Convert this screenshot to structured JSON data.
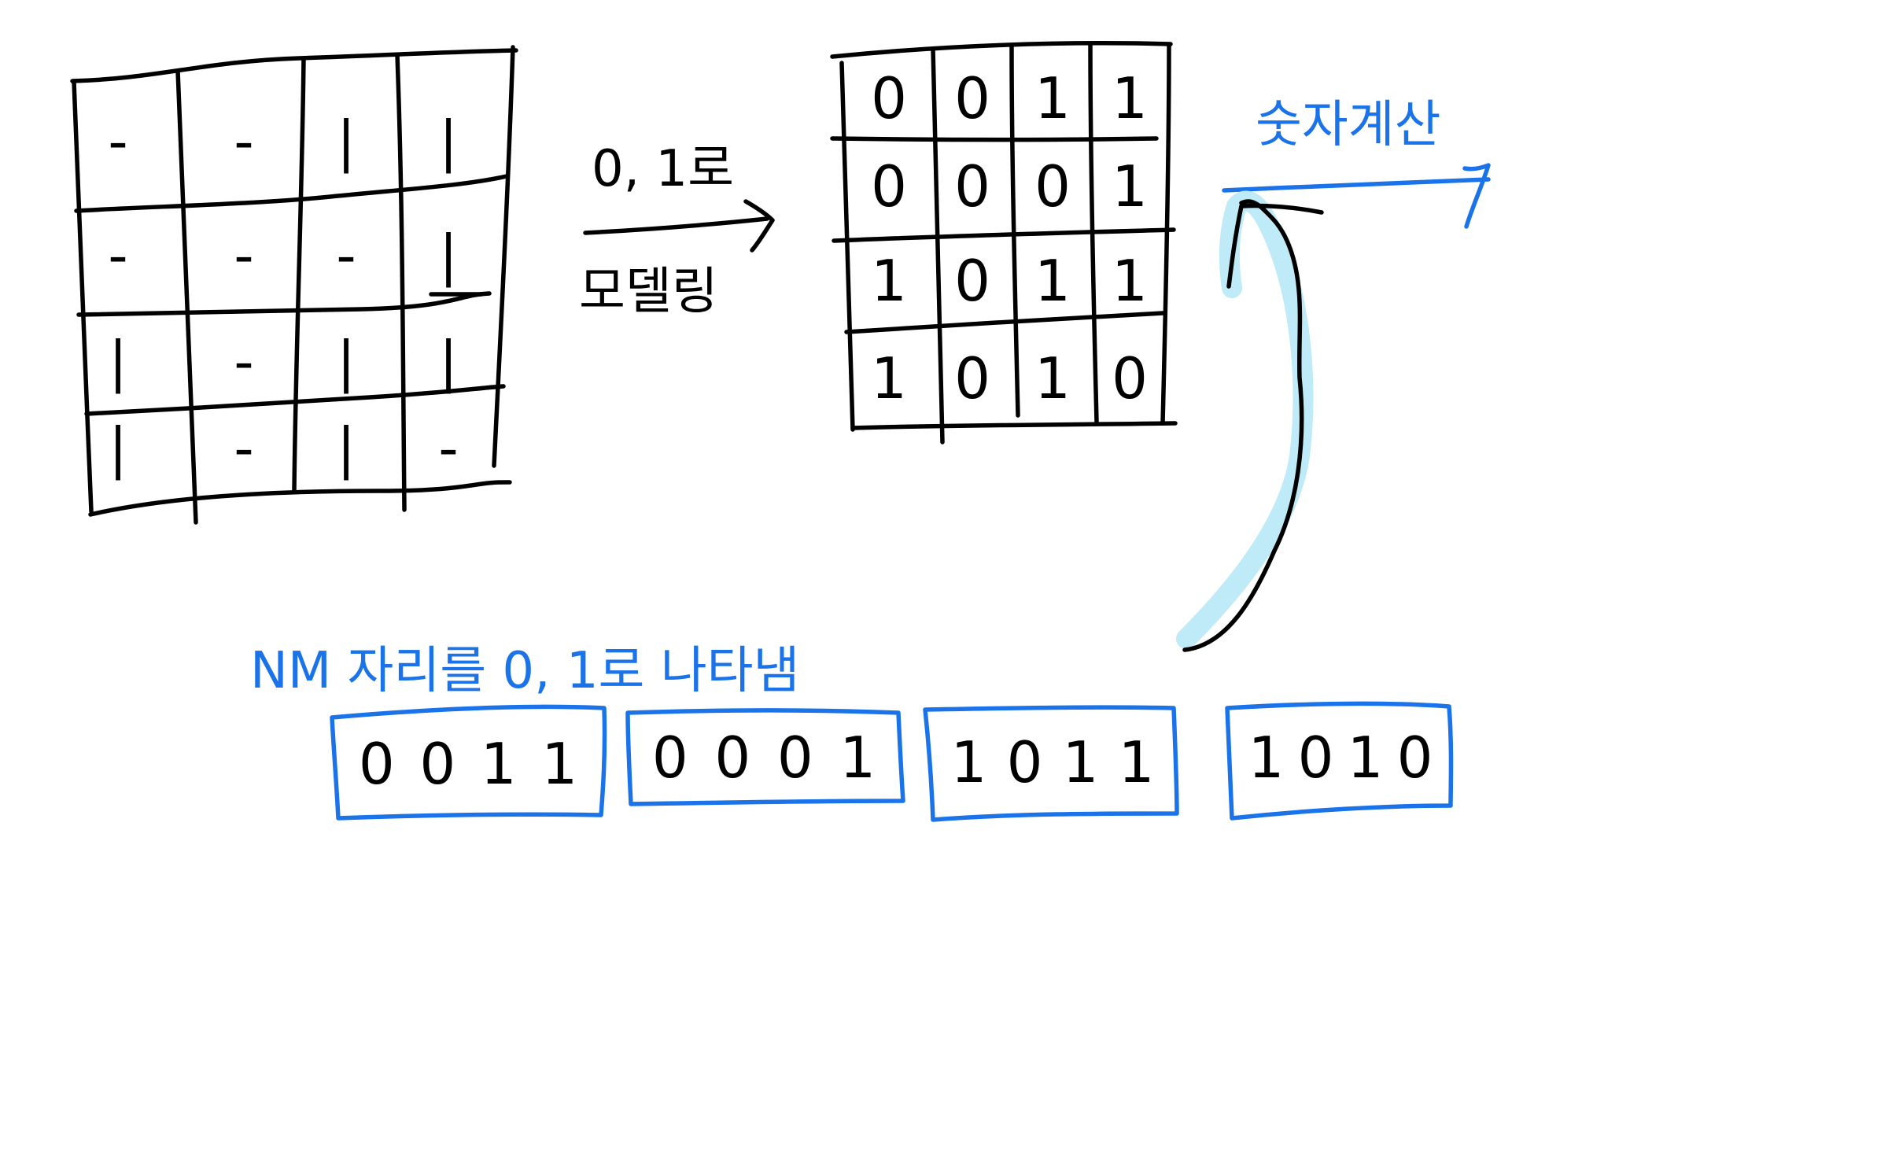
{
  "colors": {
    "ink": "#000000",
    "accent_blue": "#1a73e8",
    "highlight": "#bfeaf8"
  },
  "source_grid": {
    "rows": [
      [
        "-",
        "-",
        "|",
        "|"
      ],
      [
        "-",
        "-",
        "-",
        "|"
      ],
      [
        "|",
        "-",
        "|",
        "|"
      ],
      [
        "|",
        "-",
        "|",
        "-"
      ]
    ]
  },
  "arrow_label_top": "0, 1로",
  "arrow_label_bottom": "모델링",
  "binary_grid": {
    "rows": [
      [
        "0",
        "0",
        "1",
        "1"
      ],
      [
        "0",
        "0",
        "0",
        "1"
      ],
      [
        "1",
        "0",
        "1",
        "1"
      ],
      [
        "1",
        "0",
        "1",
        "0"
      ]
    ]
  },
  "number_calc_label": "숫자계산",
  "nm_label": "NM 자리를 0, 1로 나타냄",
  "bit_groups": [
    [
      "0",
      "0",
      "1",
      "1"
    ],
    [
      "0",
      "0",
      "0",
      "1"
    ],
    [
      "1",
      "0",
      "1",
      "1"
    ],
    [
      "1",
      "0",
      "1",
      "0"
    ]
  ]
}
